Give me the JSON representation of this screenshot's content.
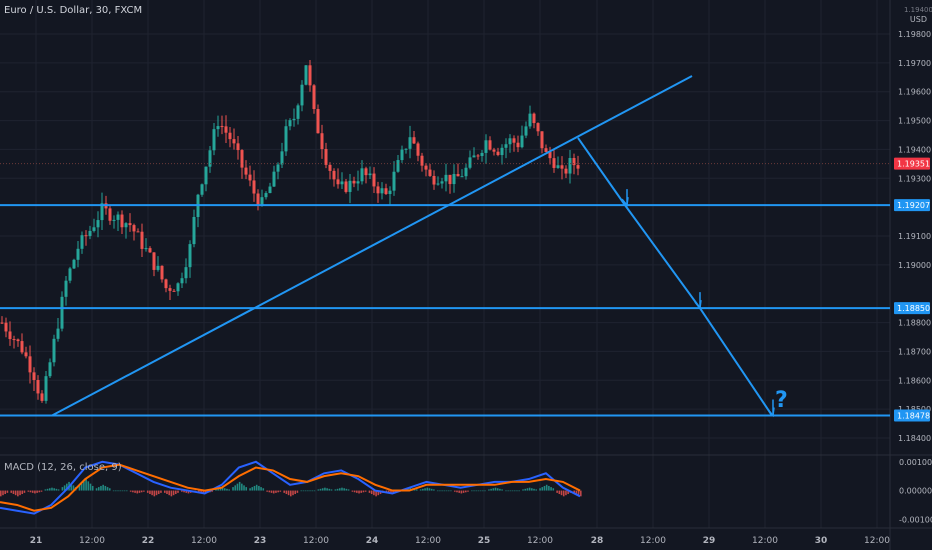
{
  "header": {
    "symbol_title": "Euro / U.S. Dollar, 30, FXCM",
    "price_axis_unit": "USD",
    "price_axis_top_label": "1.19400"
  },
  "colors": {
    "background": "#131722",
    "grid": "#1f2330",
    "up": "#26a69a",
    "down": "#ef5350",
    "drawing": "#2196f3",
    "macd_line": "#2962ff",
    "signal_line": "#ff6d00",
    "current_price_tag": "#f23645",
    "level_tag": "#2196f3"
  },
  "annotation": {
    "question_mark": "?"
  },
  "macd_panel": {
    "title": "MACD (12, 26, close, 9)"
  },
  "chart_data": [
    {
      "type": "candlestick",
      "title": "Euro / U.S. Dollar, 30, FXCM",
      "x_tick_labels": [
        "21",
        "12:00",
        "22",
        "12:00",
        "23",
        "12:00",
        "24",
        "12:00",
        "25",
        "12:00",
        "28",
        "12:00",
        "29",
        "12:00",
        "30",
        "12:00"
      ],
      "y_tick_labels": [
        "1.19800",
        "1.19700",
        "1.19600",
        "1.19500",
        "1.19400",
        "1.19300",
        "1.19100",
        "1.19000",
        "1.18800",
        "1.18700",
        "1.18600",
        "1.18500",
        "1.18400"
      ],
      "ylim": [
        1.1838,
        1.1998
      ],
      "current_price": "1.19351",
      "horizontal_levels": [
        "1.19207",
        "1.18850",
        "1.18478"
      ],
      "trendline": {
        "start": {
          "x": "21 ~05:00",
          "y": 1.18478
        },
        "end": {
          "x": "28 ~03:00",
          "y": 1.1964
        }
      },
      "projection_path": [
        1.1944,
        1.19207,
        1.1885,
        1.18478
      ],
      "close_path": [
        [
          0,
          1.188
        ],
        [
          5,
          1.1871
        ],
        [
          8,
          1.1862
        ],
        [
          10,
          1.1852
        ],
        [
          14,
          1.188
        ],
        [
          16,
          1.1894
        ],
        [
          19,
          1.1906
        ],
        [
          22,
          1.1912
        ],
        [
          25,
          1.1919
        ],
        [
          28,
          1.1917
        ],
        [
          32,
          1.1914
        ],
        [
          36,
          1.1905
        ],
        [
          39,
          1.1898
        ],
        [
          41,
          1.1892
        ],
        [
          44,
          1.1893
        ],
        [
          47,
          1.1906
        ],
        [
          49,
          1.1925
        ],
        [
          52,
          1.194
        ],
        [
          54,
          1.195
        ],
        [
          57,
          1.1944
        ],
        [
          60,
          1.1934
        ],
        [
          63,
          1.1925
        ],
        [
          65,
          1.1921
        ],
        [
          68,
          1.193
        ],
        [
          71,
          1.1946
        ],
        [
          73,
          1.1951
        ],
        [
          76,
          1.197
        ],
        [
          78,
          1.1952
        ],
        [
          81,
          1.1937
        ],
        [
          84,
          1.1926
        ],
        [
          87,
          1.1928
        ],
        [
          90,
          1.1932
        ],
        [
          93,
          1.1928
        ],
        [
          96,
          1.1924
        ],
        [
          98,
          1.1931
        ],
        [
          100,
          1.1938
        ],
        [
          102,
          1.1945
        ],
        [
          104,
          1.1938
        ],
        [
          107,
          1.193
        ],
        [
          110,
          1.1931
        ],
        [
          113,
          1.1929
        ],
        [
          116,
          1.1933
        ],
        [
          119,
          1.1939
        ],
        [
          121,
          1.1943
        ],
        [
          124,
          1.194
        ],
        [
          127,
          1.1943
        ],
        [
          129,
          1.1942
        ],
        [
          132,
          1.1951
        ],
        [
          134,
          1.1945
        ],
        [
          136,
          1.1938
        ],
        [
          138,
          1.1936
        ],
        [
          140,
          1.1931
        ],
        [
          142,
          1.1935
        ],
        [
          144,
          1.1935
        ]
      ]
    },
    {
      "type": "line",
      "title": "MACD (12, 26, close, 9)",
      "y_tick_labels": [
        "0.00100",
        "0.00000",
        "-0.00100"
      ],
      "ylim": [
        -0.0013,
        0.0012
      ],
      "series": [
        {
          "name": "MACD",
          "values": [
            -0.0006,
            -0.0007,
            -0.0008,
            -0.0005,
            0.0001,
            0.0008,
            0.001,
            0.0009,
            0.0006,
            0.0003,
            0.0001,
            0.0,
            -0.0001,
            0.0002,
            0.0008,
            0.001,
            0.0006,
            0.0002,
            0.0003,
            0.0006,
            0.0007,
            0.0004,
            0.0,
            -0.0001,
            0.0001,
            0.0003,
            0.0002,
            0.0001,
            0.0002,
            0.0003,
            0.0003,
            0.0004,
            0.0006,
            0.0001,
            -0.0002
          ]
        },
        {
          "name": "Signal",
          "values": [
            -0.0004,
            -0.0005,
            -0.0007,
            -0.0006,
            -0.0002,
            0.0004,
            0.0008,
            0.0009,
            0.0007,
            0.0005,
            0.0003,
            0.0001,
            0.0,
            0.0001,
            0.0005,
            0.0008,
            0.0007,
            0.0004,
            0.0003,
            0.0005,
            0.0006,
            0.0005,
            0.0002,
            0.0,
            0.0,
            0.0002,
            0.0002,
            0.0002,
            0.0002,
            0.0002,
            0.0003,
            0.0003,
            0.0004,
            0.0003,
            0.0
          ]
        }
      ]
    }
  ]
}
